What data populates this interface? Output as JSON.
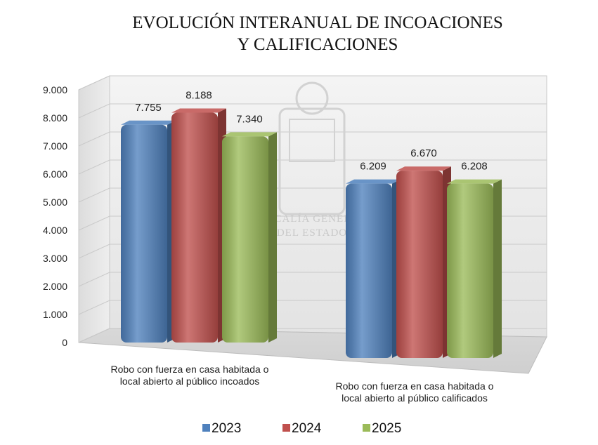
{
  "chart_data": {
    "type": "bar",
    "title_lines": [
      "EVOLUCIÓN INTERANUAL DE INCOACIONES",
      "Y CALIFICACIONES"
    ],
    "categories": [
      [
        "Robo con fuerza en casa habitada o",
        "local abierto al público incoados"
      ],
      [
        "Robo con fuerza en casa habitada o",
        "local abierto al público calificados"
      ]
    ],
    "series": [
      {
        "name": "2023",
        "values": [
          7755,
          6209
        ],
        "labels": [
          "7.755",
          "6.209"
        ],
        "color": "#4f81bd"
      },
      {
        "name": "2024",
        "values": [
          8188,
          6670
        ],
        "labels": [
          "8.188",
          "6.670"
        ],
        "color": "#c0504d"
      },
      {
        "name": "2025",
        "values": [
          7340,
          6208
        ],
        "labels": [
          "7.340",
          "6.208"
        ],
        "color": "#9bbb59"
      }
    ],
    "ylim": [
      0,
      9000
    ],
    "yticks": [
      0,
      1000,
      2000,
      3000,
      4000,
      5000,
      6000,
      7000,
      8000,
      9000
    ],
    "ytick_labels": [
      "0",
      "1.000",
      "2.000",
      "3.000",
      "4.000",
      "5.000",
      "6.000",
      "7.000",
      "8.000",
      "9.000"
    ],
    "grid": true,
    "legend_position": "bottom",
    "three_d": true,
    "watermark": [
      "FISCALÍA GENERAL",
      "DEL ESTADO"
    ]
  }
}
